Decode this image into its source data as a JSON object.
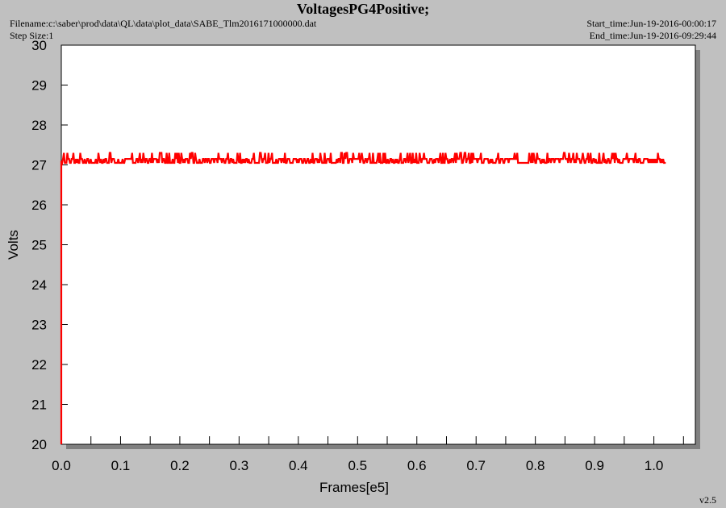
{
  "header": {
    "title": "VoltagesPG4Positive;",
    "filename": "Filename:c:\\saber\\prod\\data\\QL\\data\\plot_data\\SABE_Tlm2016171000000.dat",
    "step_size": "Step Size:1",
    "start_time": "Start_time:Jun-19-2016-00:00:17",
    "end_time": "End_time:Jun-19-2016-09:29:44"
  },
  "footer": {
    "version": "v2.5"
  },
  "colors": {
    "background": "#c0c0c0",
    "plot_area": "#ffffff",
    "shadow": "#808080",
    "series": "#ff0000"
  },
  "chart_data": {
    "type": "line",
    "title": "VoltagesPG4Positive;",
    "xlabel": "Frames[e5]",
    "ylabel": "Volts",
    "xlim": [
      0.0,
      1.07
    ],
    "ylim": [
      20,
      30
    ],
    "x_ticks": [
      "0.0",
      "0.1",
      "0.2",
      "0.3",
      "0.4",
      "0.5",
      "0.6",
      "0.7",
      "0.8",
      "0.9",
      "1.0"
    ],
    "y_ticks": [
      "20",
      "21",
      "22",
      "23",
      "24",
      "25",
      "26",
      "27",
      "28",
      "29",
      "30"
    ],
    "grid": false,
    "series": [
      {
        "x_start": 0.0,
        "x_end": 1.02,
        "baseline": 27.1,
        "low": 27.05,
        "high": 27.15,
        "spike_high": 27.3,
        "initial_drop_to": 20
      }
    ]
  }
}
